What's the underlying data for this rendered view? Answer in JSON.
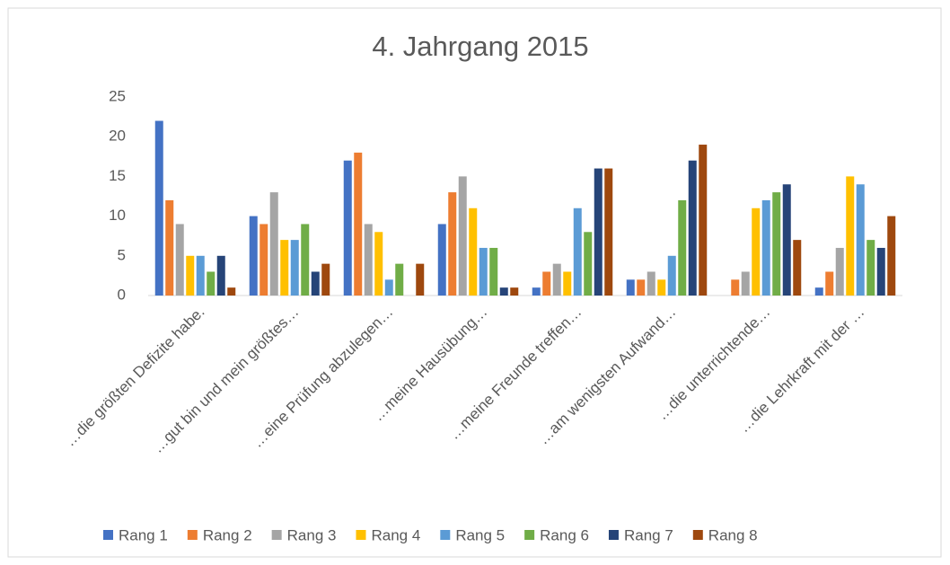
{
  "chart_data": {
    "type": "bar",
    "title": "4. Jahrgang 2015",
    "categories": [
      "…die größten Defizite habe.",
      "…gut bin und mein größtes…",
      "…eine Prüfung abzulegen…",
      "…meine Hausübung…",
      "…meine Freunde treffen…",
      "…am wenigsten Aufwand…",
      "…die unterrichtende…",
      "…die Lehrkraft mit der …"
    ],
    "series": [
      {
        "name": "Rang 1",
        "color": "#4472C4",
        "values": [
          22,
          10,
          17,
          9,
          1,
          2,
          0,
          1
        ]
      },
      {
        "name": "Rang 2",
        "color": "#ED7D31",
        "values": [
          12,
          9,
          18,
          13,
          3,
          2,
          2,
          3
        ]
      },
      {
        "name": "Rang 3",
        "color": "#A5A5A5",
        "values": [
          9,
          13,
          9,
          15,
          4,
          3,
          3,
          6
        ]
      },
      {
        "name": "Rang 4",
        "color": "#FFC000",
        "values": [
          5,
          7,
          8,
          11,
          3,
          2,
          11,
          15
        ]
      },
      {
        "name": "Rang 5",
        "color": "#5B9BD5",
        "values": [
          5,
          7,
          2,
          6,
          11,
          5,
          12,
          14
        ]
      },
      {
        "name": "Rang 6",
        "color": "#70AD47",
        "values": [
          3,
          9,
          4,
          6,
          8,
          12,
          13,
          7
        ]
      },
      {
        "name": "Rang 7",
        "color": "#264478",
        "values": [
          5,
          3,
          0,
          1,
          16,
          17,
          14,
          6
        ]
      },
      {
        "name": "Rang 8",
        "color": "#9E480E",
        "values": [
          1,
          4,
          4,
          1,
          16,
          19,
          7,
          10
        ]
      }
    ],
    "ylim": [
      0,
      25
    ],
    "yticks": [
      0,
      5,
      10,
      15,
      20,
      25
    ],
    "grid": false,
    "legend": "bottom"
  }
}
